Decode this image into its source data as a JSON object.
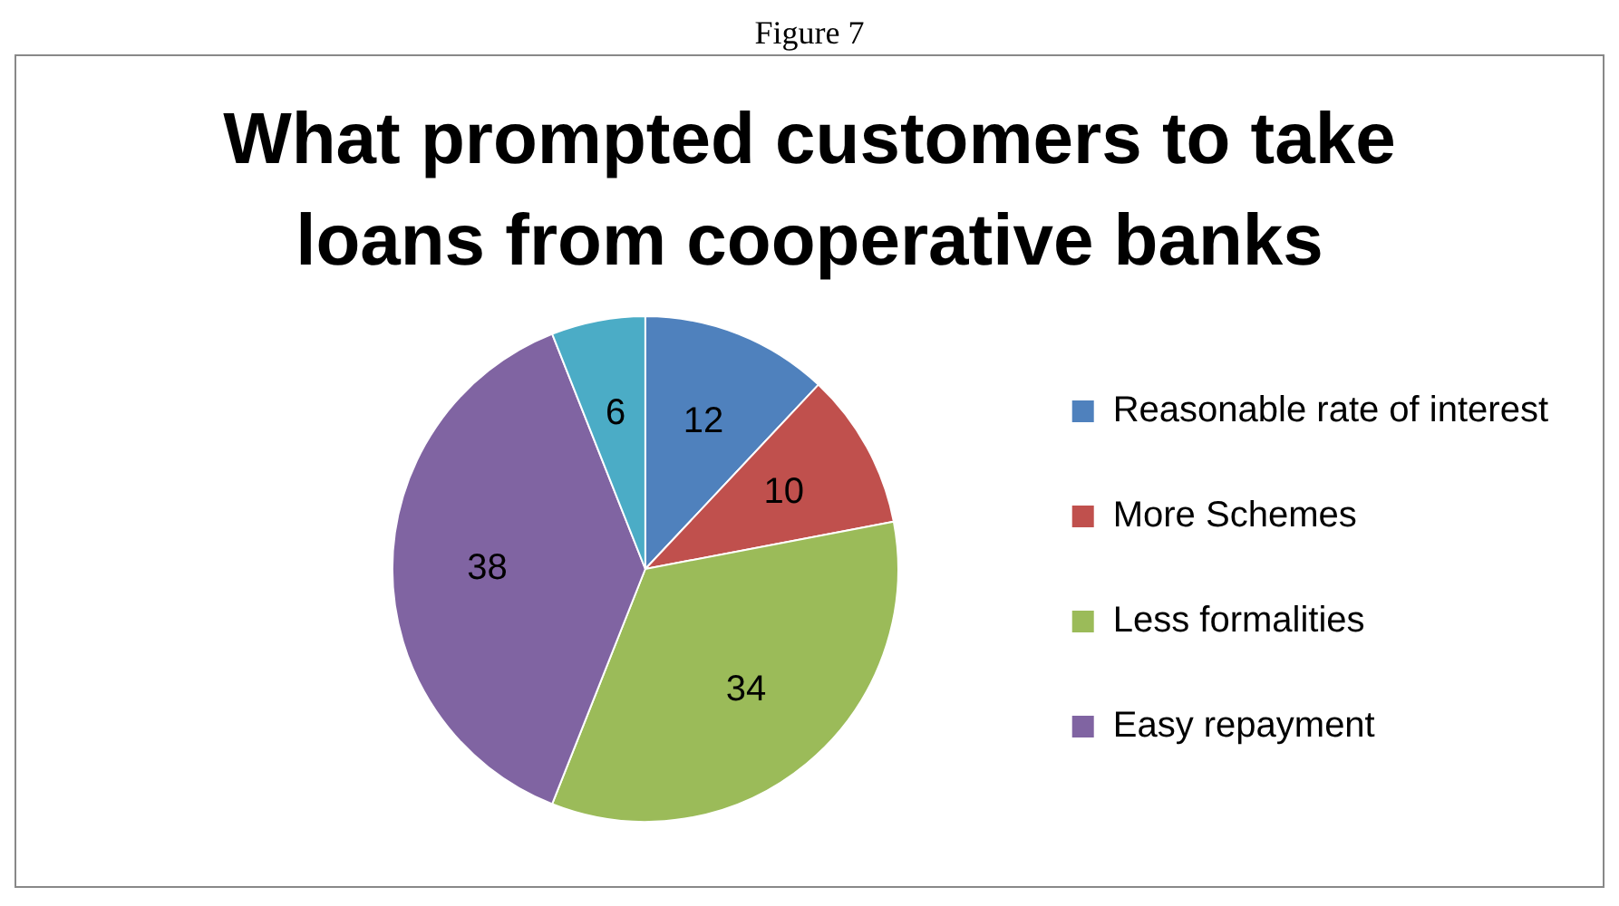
{
  "chart_data": {
    "type": "pie",
    "title": "What prompted customers to take loans from cooperative banks",
    "annotations": [
      "Figure 7"
    ],
    "categories": [
      "Reasonable rate of interest",
      "More Schemes",
      "Less formalities",
      "Easy repayment",
      null
    ],
    "values": [
      12,
      10,
      34,
      38,
      6
    ],
    "colors": [
      "#4f81bd",
      "#c0504d",
      "#9bbb59",
      "#8064a2",
      "#4bacc6"
    ],
    "data_labels": true,
    "legend": "right"
  }
}
